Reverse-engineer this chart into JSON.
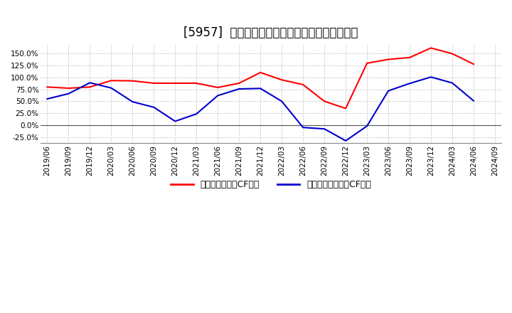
{
  "title": "[5957]  有利子負債キャッシュフロー比率の推移",
  "red_label": "有利子負債営業CF比率",
  "blue_label": "有利子負債フリーCF比率",
  "x_labels": [
    "2019/06",
    "2019/09",
    "2019/12",
    "2020/03",
    "2020/06",
    "2020/09",
    "2020/12",
    "2021/03",
    "2021/06",
    "2021/09",
    "2021/12",
    "2022/03",
    "2022/06",
    "2022/09",
    "2022/12",
    "2023/03",
    "2023/06",
    "2023/09",
    "2023/12",
    "2024/03",
    "2024/06",
    "2024/09"
  ],
  "red_values": [
    0.8,
    0.775,
    0.8,
    0.935,
    0.93,
    0.88,
    0.88,
    0.88,
    0.79,
    0.88,
    1.105,
    0.95,
    0.85,
    0.5,
    0.35,
    1.3,
    1.38,
    1.42,
    1.62,
    1.5,
    1.28,
    null
  ],
  "blue_values": [
    0.55,
    0.66,
    0.89,
    0.78,
    0.49,
    0.375,
    0.08,
    0.235,
    0.62,
    0.76,
    0.77,
    0.5,
    -0.05,
    -0.08,
    -0.33,
    -0.02,
    0.72,
    0.875,
    1.01,
    0.885,
    0.51,
    null
  ],
  "ylim": [
    -0.375,
    1.7
  ],
  "yticks": [
    -0.25,
    0.0,
    0.25,
    0.5,
    0.75,
    1.0,
    1.25,
    1.5
  ],
  "background_color": "#ffffff",
  "plot_bg_color": "#ffffff",
  "grid_color": "#aaaaaa",
  "red_color": "#ff0000",
  "blue_color": "#0000cc",
  "title_fontsize": 12,
  "legend_fontsize": 9,
  "tick_fontsize": 7.5
}
